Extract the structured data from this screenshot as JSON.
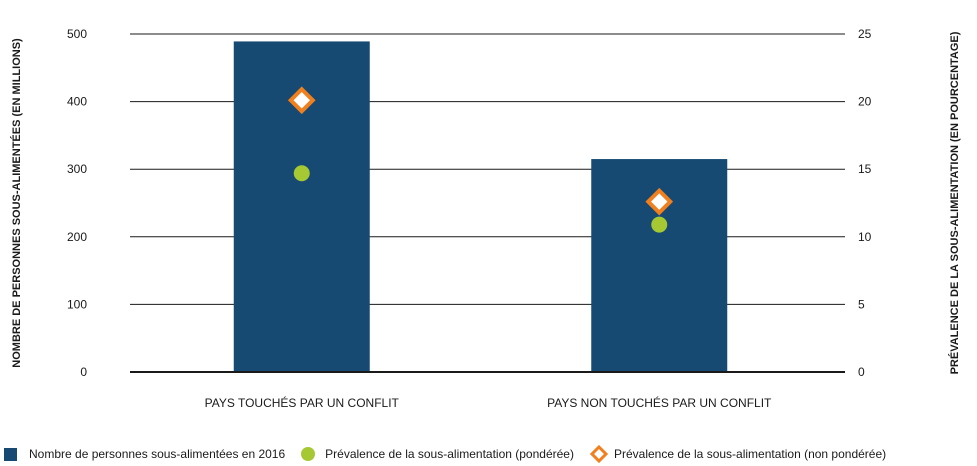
{
  "chart_data": {
    "type": "bar",
    "categories": [
      "PAYS TOUCHÉS PAR UN CONFLIT",
      "PAYS NON TOUCHÉS PAR UN CONFLIT"
    ],
    "series": [
      {
        "name": "Nombre de personnes sous-alimentées en 2016",
        "kind": "bar",
        "axis": "left",
        "values": [
          489,
          315
        ],
        "color": "#174a72"
      },
      {
        "name": "Prévalence de la sous-alimentation (pondérée)",
        "kind": "point",
        "marker": "circle",
        "axis": "right",
        "values": [
          14.7,
          10.9
        ],
        "color": "#a5c833"
      },
      {
        "name": "Prévalence de la sous-alimentation (non pondérée)",
        "kind": "point",
        "marker": "diamond",
        "axis": "right",
        "values": [
          20.1,
          12.6
        ],
        "color": "#f07f1e"
      }
    ],
    "ylabel": "NOMBRE DE PERSONNES SOUS-ALIMENTÉES (EN MILLIONS)",
    "y2label": "PRÉVALENCE DE LA SOUS-ALIMENTATION (EN POURCENTAGE)",
    "ylim": [
      0,
      500
    ],
    "y2lim": [
      0,
      25
    ],
    "yticks": [
      "0",
      "100",
      "200",
      "300",
      "400",
      "500"
    ],
    "y2ticks": [
      "0",
      "5",
      "10",
      "15",
      "20",
      "25"
    ],
    "grid": true,
    "legend_position": "bottom"
  }
}
